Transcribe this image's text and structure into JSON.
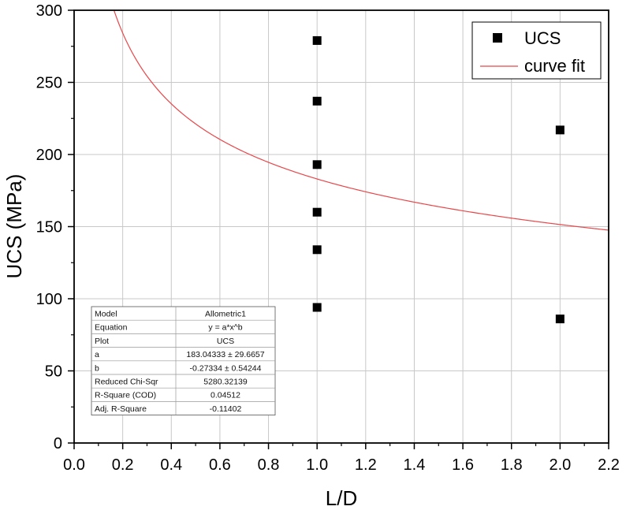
{
  "chart_data": {
    "type": "scatter",
    "xlabel": "L/D",
    "ylabel": "UCS (MPa)",
    "xlim": [
      0.0,
      2.2
    ],
    "ylim": [
      0,
      300
    ],
    "x_ticks": [
      "0.0",
      "0.2",
      "0.4",
      "0.6",
      "0.8",
      "1.0",
      "1.2",
      "1.4",
      "1.6",
      "1.8",
      "2.0",
      "2.2"
    ],
    "y_ticks": [
      "0",
      "50",
      "100",
      "150",
      "200",
      "250",
      "300"
    ],
    "grid": true,
    "legend_position": "top-right",
    "series": [
      {
        "name": "UCS",
        "kind": "scatter",
        "marker": "square",
        "color": "#000000",
        "points": [
          {
            "x": 1.0,
            "y": 279
          },
          {
            "x": 1.0,
            "y": 237
          },
          {
            "x": 1.0,
            "y": 193
          },
          {
            "x": 1.0,
            "y": 160
          },
          {
            "x": 1.0,
            "y": 134
          },
          {
            "x": 1.0,
            "y": 94
          },
          {
            "x": 2.0,
            "y": 217
          },
          {
            "x": 2.0,
            "y": 86
          }
        ]
      },
      {
        "name": "curve fit",
        "kind": "line",
        "color": "#e8474a",
        "model": "allometric",
        "a": 183.04333,
        "b": -0.27334
      }
    ],
    "stats_table": [
      {
        "label": "Model",
        "value": "Allometric1"
      },
      {
        "label": "Equation",
        "value": "y = a*x^b"
      },
      {
        "label": "Plot",
        "value": "UCS"
      },
      {
        "label": "a",
        "value": "183.04333 ± 29.6657"
      },
      {
        "label": "b",
        "value": "-0.27334 ± 0.54244"
      },
      {
        "label": "Reduced Chi-Sqr",
        "value": "5280.32139"
      },
      {
        "label": "R-Square (COD)",
        "value": "0.04512"
      },
      {
        "label": "Adj. R-Square",
        "value": "-0.11402"
      }
    ]
  }
}
